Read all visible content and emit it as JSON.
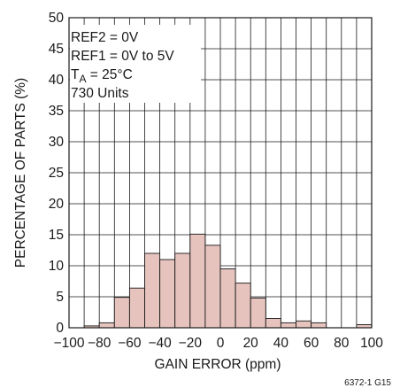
{
  "colors": {
    "bar_fill": "#e6c3bd",
    "bar_stroke": "#1a1a1a",
    "grid": "#1a1a1a"
  },
  "chart_data": {
    "type": "bar",
    "xlabel": "GAIN ERROR (ppm)",
    "ylabel": "PERCENTAGE OF PARTS (%)",
    "xlim": [
      -100,
      100
    ],
    "ylim": [
      0,
      50
    ],
    "grid": true,
    "bin_width": 10,
    "bin_starts": [
      -90,
      -80,
      -70,
      -60,
      -50,
      -40,
      -30,
      -20,
      -10,
      0,
      10,
      20,
      30,
      40,
      50,
      60,
      90
    ],
    "values": [
      0.3,
      0.8,
      4.9,
      6.4,
      12.0,
      11.0,
      12.0,
      15.1,
      13.3,
      9.5,
      7.2,
      4.8,
      1.5,
      0.8,
      1.1,
      0.8,
      0.5
    ],
    "x_tick_labels": [
      "−100",
      "−80",
      "−60",
      "−40",
      "−20",
      "0",
      "20",
      "40",
      "60",
      "80",
      "100"
    ],
    "y_tick_labels": [
      "0",
      "5",
      "10",
      "15",
      "20",
      "25",
      "30",
      "35",
      "40",
      "45",
      "50"
    ],
    "annotation": {
      "line1": "REF2 = 0V",
      "line2": "REF1 = 0V to 5V",
      "line3_main": "T",
      "line3_sub": "A",
      "line3_rest": " = 25°C",
      "line4": "730 Units"
    },
    "figure_code": "6372-1 G15"
  }
}
